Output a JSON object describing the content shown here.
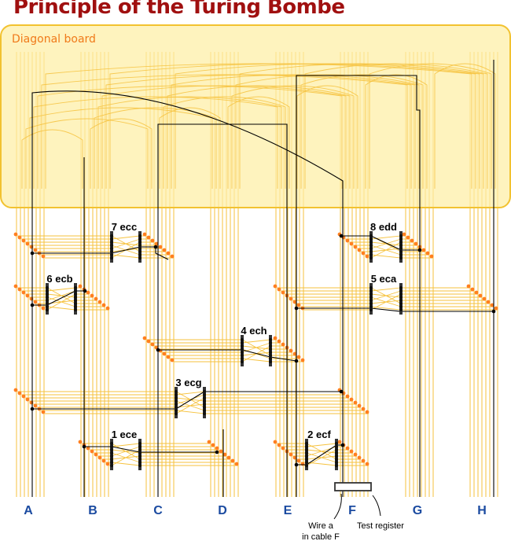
{
  "title": "Principle of the Turing Bombe",
  "diagonal_board": {
    "label": "Diagonal board"
  },
  "cables": [
    "A",
    "B",
    "C",
    "D",
    "E",
    "F",
    "G",
    "H"
  ],
  "units": [
    {
      "id": "u7",
      "label": "7 ecc"
    },
    {
      "id": "u8",
      "label": "8 edd"
    },
    {
      "id": "u6",
      "label": "6 ecb"
    },
    {
      "id": "u5",
      "label": "5 eca"
    },
    {
      "id": "u4",
      "label": "4 ech"
    },
    {
      "id": "u3",
      "label": "3 ecg"
    },
    {
      "id": "u1",
      "label": "1 ece"
    },
    {
      "id": "u2",
      "label": "2 ecf"
    }
  ],
  "annotations": {
    "wire_a_line1": "Wire a",
    "wire_a_line2": "in cable F",
    "test_register": "Test register"
  },
  "colors": {
    "title": "#a01010",
    "board_fill": "#fdeea5",
    "board_stroke": "#f2c230",
    "wire": "#f6c23e",
    "connector_dot": "#ff7f1f",
    "cable_label": "#1a4aa0",
    "scrambler": "#333333",
    "path": "#000000"
  }
}
